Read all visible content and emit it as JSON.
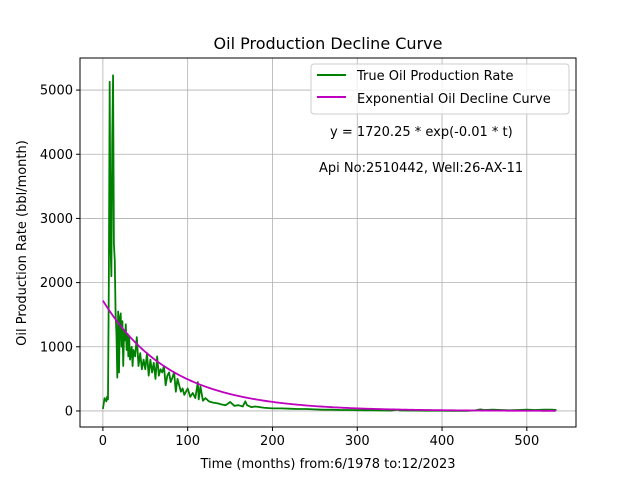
{
  "chart_data": {
    "type": "line",
    "title": "Oil Production Decline Curve",
    "xlabel": "Time (months) from:6/1978 to:12/2023",
    "ylabel": "Oil Production Rate (bbl/month)",
    "xlim": [
      -27,
      558
    ],
    "ylim": [
      -250,
      5500
    ],
    "xticks": [
      0,
      100,
      200,
      300,
      400,
      500
    ],
    "yticks": [
      0,
      1000,
      2000,
      3000,
      4000,
      5000
    ],
    "grid": true,
    "legend_position": "top-right",
    "annotations": [
      {
        "text": "y = 1720.25 * exp(-0.01 * t)",
        "x": 325,
        "y": 4270
      },
      {
        "text": "Api No:2510442, Well:26-AX-11",
        "x": 320,
        "y": 3710
      }
    ],
    "series": [
      {
        "name": "True Oil Production Rate",
        "color": "#008000",
        "x": [
          0,
          2,
          4,
          5,
          6,
          7,
          8,
          9,
          10,
          11,
          12,
          13,
          14,
          15,
          16,
          17,
          18,
          19,
          20,
          21,
          22,
          23,
          24,
          25,
          26,
          27,
          28,
          29,
          30,
          31,
          32,
          33,
          34,
          35,
          36,
          38,
          40,
          42,
          44,
          46,
          48,
          50,
          52,
          54,
          56,
          58,
          60,
          62,
          64,
          66,
          68,
          70,
          72,
          74,
          76,
          78,
          80,
          82,
          84,
          86,
          88,
          90,
          92,
          94,
          96,
          98,
          100,
          103,
          106,
          109,
          112,
          113,
          115,
          118,
          121,
          125,
          130,
          135,
          140,
          145,
          150,
          155,
          160,
          165,
          168,
          170,
          175,
          180,
          190,
          200,
          210,
          220,
          230,
          240,
          250,
          260,
          270,
          280,
          290,
          300,
          310,
          320,
          330,
          340,
          348,
          350,
          360,
          370,
          380,
          390,
          400,
          410,
          420,
          430,
          440,
          445,
          450,
          460,
          470,
          480,
          490,
          500,
          510,
          520,
          530,
          535
        ],
        "y": [
          30,
          200,
          150,
          220,
          180,
          2000,
          5130,
          2600,
          2100,
          4200,
          5230,
          2600,
          2350,
          1500,
          1200,
          520,
          1550,
          600,
          1450,
          1520,
          1000,
          1400,
          700,
          1250,
          1100,
          1350,
          950,
          1200,
          850,
          1150,
          800,
          900,
          1000,
          700,
          950,
          850,
          1150,
          700,
          900,
          650,
          800,
          650,
          900,
          550,
          800,
          600,
          750,
          500,
          850,
          550,
          650,
          600,
          700,
          400,
          550,
          600,
          450,
          520,
          600,
          300,
          500,
          400,
          300,
          350,
          250,
          300,
          350,
          220,
          280,
          200,
          450,
          180,
          380,
          160,
          200,
          150,
          130,
          120,
          100,
          90,
          140,
          80,
          90,
          70,
          150,
          90,
          60,
          70,
          50,
          40,
          40,
          35,
          30,
          30,
          25,
          20,
          20,
          15,
          15,
          12,
          10,
          10,
          8,
          6,
          20,
          8,
          5,
          5,
          3,
          3,
          3,
          2,
          2,
          2,
          10,
          25,
          15,
          20,
          15,
          10,
          15,
          20,
          15,
          20,
          20,
          15
        ]
      },
      {
        "name": "Exponential Oil Decline Curve",
        "color": "#bf00bf",
        "model": {
          "a": 1720.25,
          "b": -0.0125
        },
        "x_range": [
          0,
          535
        ]
      }
    ]
  }
}
